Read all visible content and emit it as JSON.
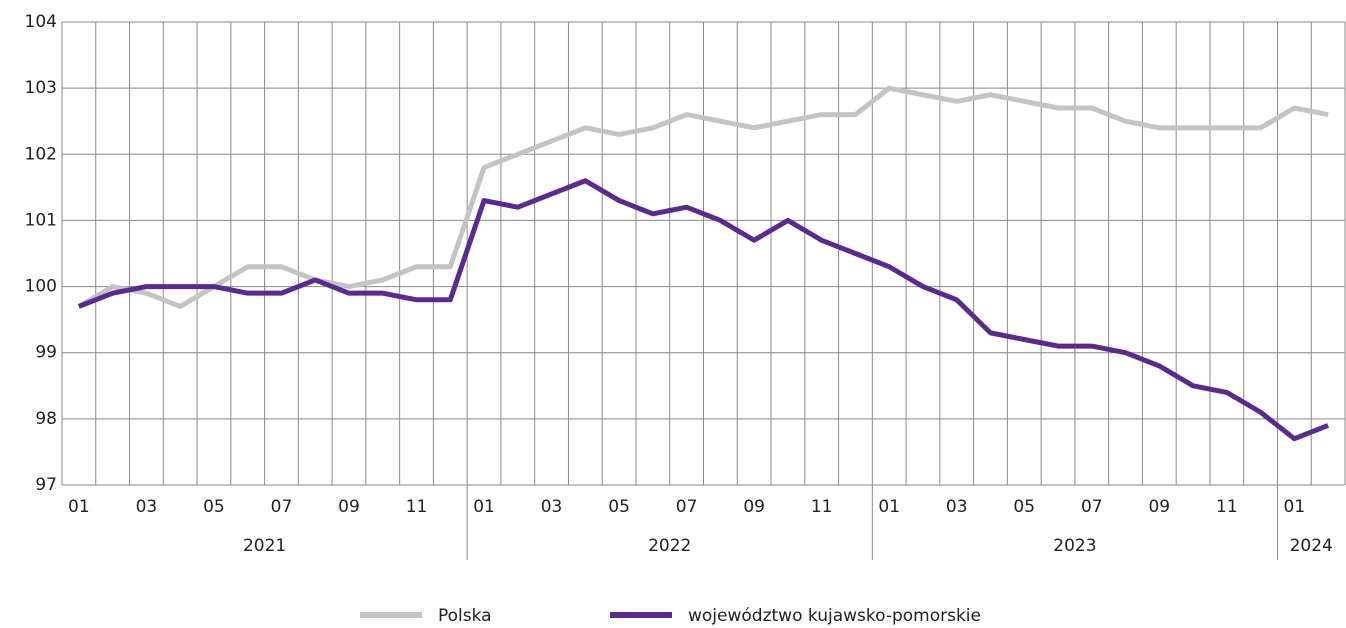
{
  "chart_data": {
    "type": "line",
    "categories": [
      "01",
      null,
      "03",
      null,
      "05",
      null,
      "07",
      null,
      "09",
      null,
      "11",
      null,
      "01",
      null,
      "03",
      null,
      "05",
      null,
      "07",
      null,
      "09",
      null,
      "11",
      null,
      "01",
      null,
      "03",
      null,
      "05",
      null,
      "07",
      null,
      "09",
      null,
      "11",
      null,
      "01",
      null
    ],
    "years": [
      "2021",
      "2022",
      "2023",
      "2024"
    ],
    "series": [
      {
        "name": "Polska",
        "color": "#c4c4c4",
        "values": [
          99.7,
          100.0,
          99.9,
          99.7,
          100.0,
          100.3,
          100.3,
          100.1,
          100.0,
          100.1,
          100.3,
          100.3,
          101.8,
          102.0,
          102.2,
          102.4,
          102.3,
          102.4,
          102.6,
          102.5,
          102.4,
          102.5,
          102.6,
          102.6,
          103.0,
          102.9,
          102.8,
          102.9,
          102.8,
          102.7,
          102.7,
          102.5,
          102.4,
          102.4,
          102.4,
          102.4,
          102.7,
          102.6
        ]
      },
      {
        "name": "województwo kujawsko-pomorskie",
        "color": "#5a2a92",
        "values": [
          99.7,
          99.9,
          100.0,
          100.0,
          100.0,
          99.9,
          99.9,
          100.1,
          99.9,
          99.9,
          99.8,
          99.8,
          101.3,
          101.2,
          101.4,
          101.6,
          101.3,
          101.1,
          101.2,
          101.0,
          100.7,
          101.0,
          100.7,
          100.5,
          100.3,
          100.0,
          99.8,
          99.3,
          99.2,
          99.1,
          99.1,
          99.0,
          98.8,
          98.5,
          98.4,
          98.1,
          97.7,
          97.9
        ]
      }
    ],
    "ylim": [
      97,
      104
    ],
    "yticks": [
      97,
      98,
      99,
      100,
      101,
      102,
      103,
      104
    ],
    "grid": true,
    "legend": "bottom"
  }
}
